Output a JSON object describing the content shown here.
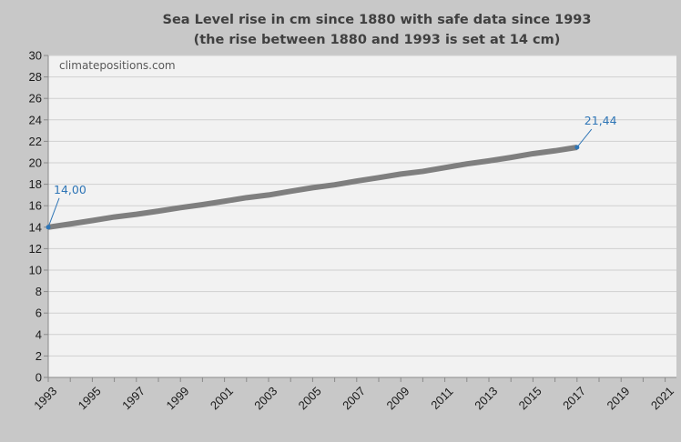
{
  "chart_data": {
    "type": "line",
    "title": "Sea Level rise in cm since 1880 with safe data since 1993",
    "subtitle": "(the rise between 1880 and 1993 is set at 14 cm)",
    "watermark": "climatepositions.com",
    "xlabel": "",
    "ylabel": "",
    "xlim": [
      1993,
      2022
    ],
    "ylim": [
      0,
      30
    ],
    "x_ticks": [
      1993,
      1995,
      1997,
      1999,
      2001,
      2003,
      2005,
      2007,
      2009,
      2011,
      2013,
      2015,
      2017,
      2019,
      2021
    ],
    "y_ticks": [
      0,
      2,
      4,
      6,
      8,
      10,
      12,
      14,
      16,
      18,
      20,
      22,
      24,
      26,
      28,
      30
    ],
    "grid": true,
    "series": [
      {
        "color": "#7f7f7f",
        "x": [
          1993,
          1994,
          1995,
          1996,
          1997,
          1998,
          1999,
          2000,
          2001,
          2002,
          2003,
          2004,
          2005,
          2006,
          2007,
          2008,
          2009,
          2010,
          2011,
          2012,
          2013,
          2014,
          2015,
          2016,
          2017
        ],
        "y": [
          14.0,
          14.3,
          14.62,
          14.95,
          15.2,
          15.5,
          15.82,
          16.1,
          16.42,
          16.75,
          17.0,
          17.35,
          17.68,
          17.95,
          18.3,
          18.62,
          18.95,
          19.2,
          19.55,
          19.9,
          20.18,
          20.5,
          20.85,
          21.12,
          21.44
        ]
      }
    ],
    "annotations": [
      {
        "x": 1993,
        "y": 14.0,
        "label": "14,00"
      },
      {
        "x": 2017,
        "y": 21.44,
        "label": "21,44"
      }
    ]
  }
}
